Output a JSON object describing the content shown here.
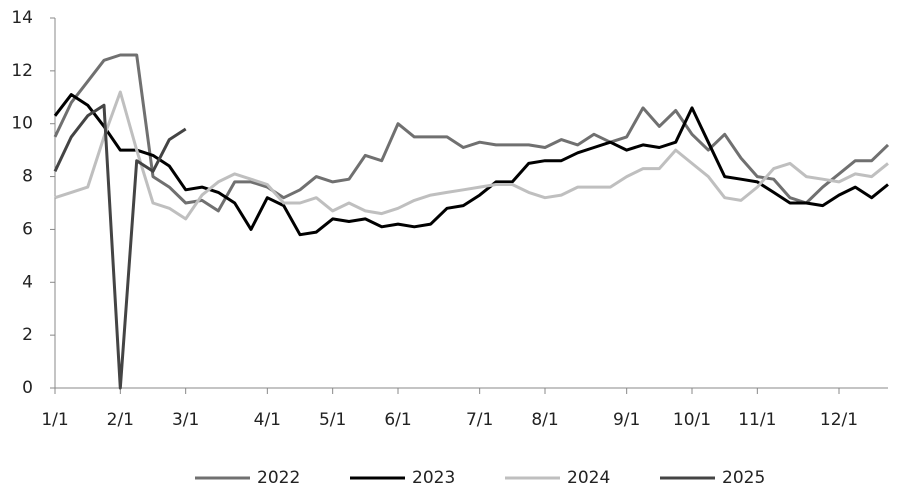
{
  "chart_data": {
    "type": "line",
    "categories": [
      "1/1",
      null,
      null,
      null,
      "2/1",
      null,
      null,
      null,
      "3/1",
      null,
      null,
      null,
      null,
      "4/1",
      null,
      null,
      null,
      "5/1",
      null,
      null,
      null,
      "6/1",
      null,
      null,
      null,
      null,
      "7/1",
      null,
      null,
      null,
      "8/1",
      null,
      null,
      null,
      null,
      "9/1",
      null,
      null,
      null,
      "10/1",
      null,
      null,
      null,
      "11/1",
      null,
      null,
      null,
      null,
      "12/1",
      null,
      null,
      null
    ],
    "series": [
      {
        "name": "2022",
        "color": "#707070",
        "values": [
          9.5,
          10.8,
          11.6,
          12.4,
          12.6,
          12.6,
          8.0,
          7.6,
          7.0,
          7.1,
          6.7,
          7.8,
          7.8,
          7.6,
          7.2,
          7.5,
          8.0,
          7.8,
          7.9,
          8.8,
          8.6,
          10.0,
          9.5,
          9.5,
          9.5,
          9.1,
          9.3,
          9.2,
          9.2,
          9.2,
          9.1,
          9.4,
          9.2,
          9.6,
          9.3,
          9.5,
          10.6,
          9.9,
          10.5,
          9.6,
          9.0,
          9.6,
          8.7,
          8.0,
          7.9,
          7.2,
          7.0,
          7.6,
          8.1,
          8.6,
          8.6,
          9.2
        ]
      },
      {
        "name": "2023",
        "color": "#000000",
        "values": [
          10.3,
          11.1,
          10.7,
          9.9,
          9.0,
          9.0,
          8.8,
          8.4,
          7.5,
          7.6,
          7.4,
          7.0,
          6.0,
          7.2,
          6.9,
          5.8,
          5.9,
          6.4,
          6.3,
          6.4,
          6.1,
          6.2,
          6.1,
          6.2,
          6.8,
          6.9,
          7.3,
          7.8,
          7.8,
          8.5,
          8.6,
          8.6,
          8.9,
          9.1,
          9.3,
          9.0,
          9.2,
          9.1,
          9.3,
          10.6,
          9.3,
          8.0,
          7.9,
          7.8,
          7.4,
          7.0,
          7.0,
          6.9,
          7.3,
          7.6,
          7.2,
          7.7
        ]
      },
      {
        "name": "2024",
        "color": "#bfbfbf",
        "values": [
          7.2,
          7.4,
          7.6,
          9.5,
          11.2,
          9.0,
          7.0,
          6.8,
          6.4,
          7.3,
          7.8,
          8.1,
          7.9,
          7.7,
          7.0,
          7.0,
          7.2,
          6.7,
          7.0,
          6.7,
          6.6,
          6.8,
          7.1,
          7.3,
          7.4,
          7.5,
          7.6,
          7.7,
          7.7,
          7.4,
          7.2,
          7.3,
          7.6,
          7.6,
          7.6,
          8.0,
          8.3,
          8.3,
          9.0,
          8.5,
          8.0,
          7.2,
          7.1,
          7.6,
          8.3,
          8.5,
          8.0,
          7.9,
          7.8,
          8.1,
          8.0,
          8.5
        ]
      },
      {
        "name": "2025",
        "color": "#444444",
        "values": [
          8.2,
          9.5,
          10.3,
          10.7,
          0,
          8.6,
          8.2,
          9.4,
          9.8,
          null,
          null,
          null,
          null,
          null,
          null,
          null,
          null,
          null,
          null,
          null,
          null,
          null,
          null,
          null,
          null,
          null,
          null,
          null,
          null,
          null,
          null,
          null,
          null,
          null,
          null,
          null,
          null,
          null,
          null,
          null,
          null,
          null,
          null,
          null,
          null,
          null,
          null,
          null,
          null,
          null,
          null,
          null
        ]
      }
    ],
    "ylim": [
      0,
      14
    ],
    "yticks": [
      0,
      2,
      4,
      6,
      8,
      10,
      12,
      14
    ],
    "grid": false,
    "legend": "bottom"
  }
}
